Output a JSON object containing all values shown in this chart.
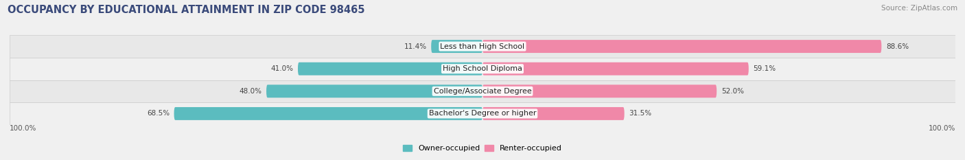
{
  "title": "OCCUPANCY BY EDUCATIONAL ATTAINMENT IN ZIP CODE 98465",
  "source": "Source: ZipAtlas.com",
  "categories": [
    "Less than High School",
    "High School Diploma",
    "College/Associate Degree",
    "Bachelor's Degree or higher"
  ],
  "owner_pct": [
    11.4,
    41.0,
    48.0,
    68.5
  ],
  "renter_pct": [
    88.6,
    59.1,
    52.0,
    31.5
  ],
  "owner_color": "#5bbcbf",
  "renter_color": "#f088a8",
  "bg_row_dark": "#e8e8e8",
  "bg_row_light": "#f0f0f0",
  "fig_bg": "#f0f0f0",
  "title_color": "#3a4a7a",
  "title_fontsize": 10.5,
  "label_fontsize": 8.0,
  "tick_fontsize": 7.5,
  "legend_fontsize": 8.0,
  "source_fontsize": 7.5,
  "pct_fontsize": 7.5,
  "axis_label": "100.0%"
}
